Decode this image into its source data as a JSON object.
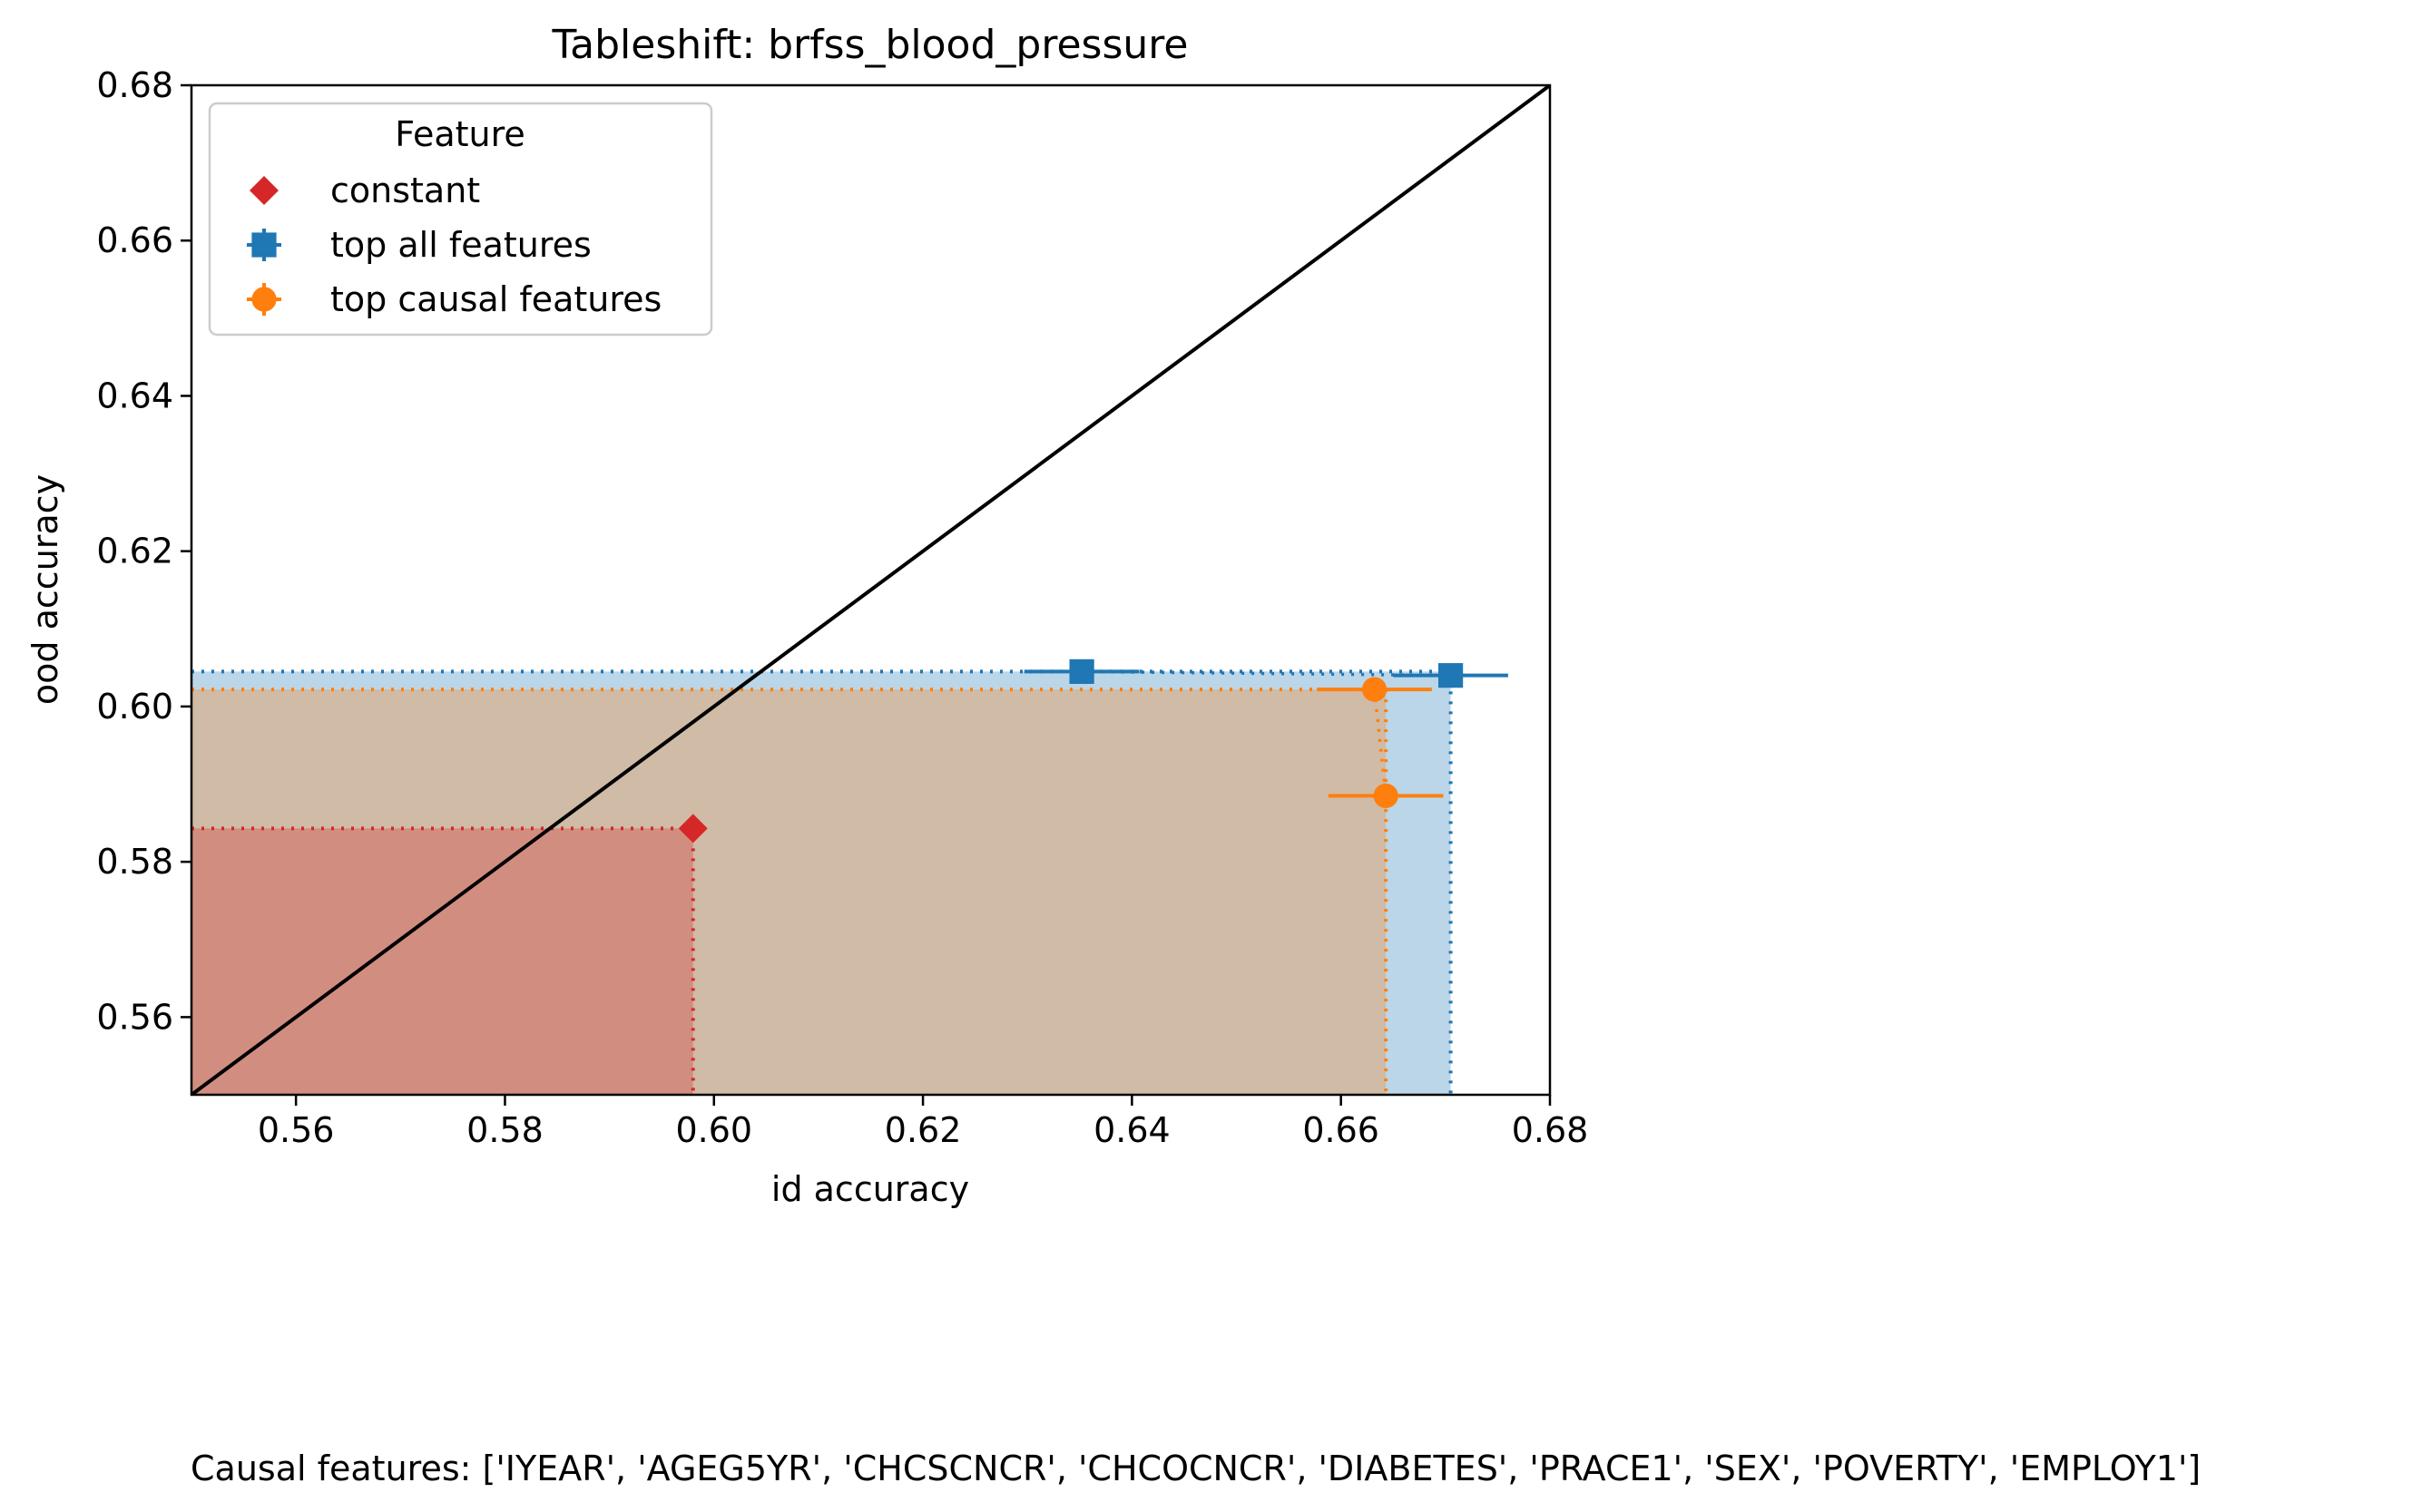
{
  "chart_data": {
    "type": "scatter",
    "title": "Tableshift: brfss_blood_pressure",
    "xlabel": "id accuracy",
    "ylabel": "ood accuracy",
    "xlim": [
      0.55,
      0.68
    ],
    "ylim": [
      0.55,
      0.68
    ],
    "x_ticks": [
      "0.56",
      "0.58",
      "0.60",
      "0.62",
      "0.64",
      "0.66",
      "0.68"
    ],
    "y_ticks": [
      "0.56",
      "0.58",
      "0.60",
      "0.62",
      "0.64",
      "0.66",
      "0.68"
    ],
    "grid": false,
    "diagonal": "y = x",
    "legend": {
      "title": "Feature",
      "placement": "top-left",
      "entries": [
        "constant",
        "top all features",
        "top causal features"
      ]
    },
    "series": [
      {
        "name": "constant",
        "color": "#d62728",
        "marker": "diamond",
        "points": [
          {
            "x": 0.598,
            "y": 0.5843,
            "xerr": 0.0,
            "yerr": 0.0
          }
        ],
        "frontier": {
          "x": 0.598,
          "y": 0.5843
        }
      },
      {
        "name": "top all features",
        "color": "#1f77b4",
        "marker": "square",
        "points": [
          {
            "x": 0.6352,
            "y": 0.6045,
            "xerr": 0.0055,
            "yerr": 0.0003
          },
          {
            "x": 0.6705,
            "y": 0.604,
            "xerr": 0.0055,
            "yerr": 0.0003
          }
        ],
        "frontier": {
          "x": 0.6705,
          "y": 0.6045
        }
      },
      {
        "name": "top causal features",
        "color": "#ff7f0e",
        "marker": "circle",
        "points": [
          {
            "x": 0.6632,
            "y": 0.6022,
            "xerr": 0.0055,
            "yerr": 0.0003
          },
          {
            "x": 0.6643,
            "y": 0.5885,
            "xerr": 0.0055,
            "yerr": 0.0003
          }
        ],
        "frontier": {
          "x": 0.6643,
          "y": 0.6022
        }
      }
    ],
    "footnote": "Causal features: ['IYEAR', 'AGEG5YR', 'CHCSCNCR', 'CHCOCNCR', 'DIABETES', 'PRACE1', 'SEX', 'POVERTY', 'EMPLOY1']"
  }
}
